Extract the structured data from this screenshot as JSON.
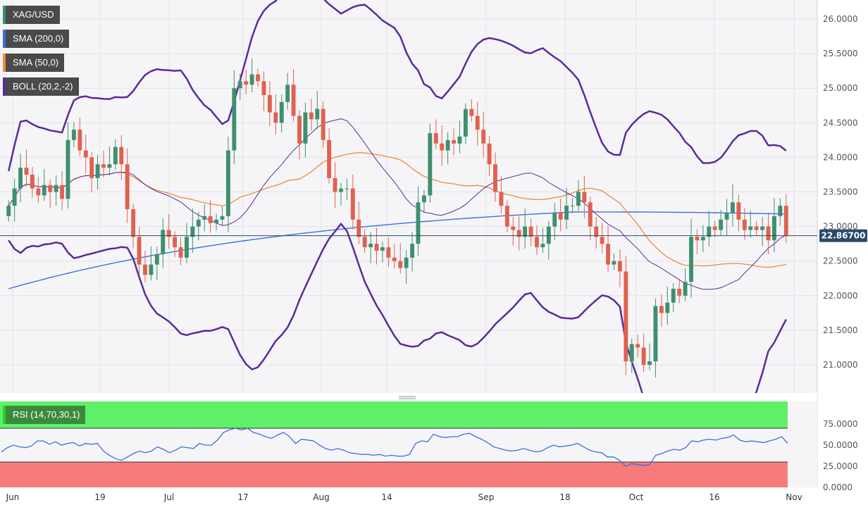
{
  "legends": {
    "symbol": "XAG/USD",
    "sma200": "SMA (200,0)",
    "sma50": "SMA (50,0)",
    "boll": "BOLL (20,2,-2)",
    "rsi": "RSI (14,70,30,1)"
  },
  "current_price_label": "22.86700",
  "colors": {
    "up": "#3f8f6f",
    "down": "#e0614f",
    "sma200": "#3a6fe0",
    "sma50": "#ef8a3a",
    "boll": "#5b2a9a",
    "rsi_line": "#3a6fe0",
    "rsi_overbought_zone": "#5ff06a",
    "rsi_oversold_zone": "#f77b7b",
    "price_line": "#2a4a6a"
  },
  "chart_data": [
    {
      "type": "candlestick",
      "title": "XAG/USD",
      "x_tick_labels": [
        "Jun",
        "19",
        "Jul",
        "17",
        "Aug",
        "14",
        "Sep",
        "18",
        "Oct",
        "16",
        "Nov"
      ],
      "y_tick_labels": [
        "26.0000",
        "25.5000",
        "25.0000",
        "24.5000",
        "24.0000",
        "23.5000",
        "23.0000",
        "22.5000",
        "22.0000",
        "21.5000",
        "21.0000"
      ],
      "ylim": [
        20.6,
        26.2
      ],
      "grid": true,
      "current_price": 22.867,
      "ohlc_close": [
        23.3,
        23.55,
        23.85,
        23.75,
        23.55,
        23.45,
        23.6,
        23.5,
        23.6,
        23.4,
        24.25,
        24.4,
        24.1,
        24.0,
        23.7,
        23.9,
        23.85,
        23.9,
        24.15,
        23.9,
        23.25,
        22.85,
        22.45,
        22.3,
        22.45,
        22.6,
        22.95,
        22.85,
        22.7,
        22.55,
        22.85,
        23.0,
        23.1,
        23.15,
        23.05,
        23.1,
        23.15,
        24.1,
        25.0,
        25.1,
        25.05,
        25.2,
        25.1,
        24.9,
        24.65,
        24.5,
        24.8,
        25.05,
        24.6,
        24.2,
        24.65,
        24.55,
        24.7,
        24.25,
        23.7,
        23.5,
        23.55,
        23.55,
        23.1,
        22.85,
        22.7,
        22.75,
        22.65,
        22.7,
        22.55,
        22.5,
        22.4,
        22.55,
        22.75,
        23.35,
        23.45,
        24.35,
        24.2,
        24.1,
        24.25,
        24.2,
        24.3,
        24.7,
        24.6,
        24.4,
        24.2,
        23.9,
        23.5,
        23.3,
        23.0,
        22.95,
        22.85,
        23.0,
        22.85,
        22.7,
        22.75,
        23.0,
        23.2,
        23.1,
        23.3,
        23.3,
        23.5,
        23.35,
        23.0,
        22.85,
        22.75,
        22.45,
        22.5,
        22.35,
        21.05,
        21.3,
        21.25,
        21.0,
        21.05,
        21.85,
        21.75,
        21.9,
        22.1,
        22.0,
        22.2,
        22.85,
        22.8,
        22.85,
        23.0,
        22.95,
        23.1,
        23.2,
        23.35,
        23.1,
        22.95,
        23.0,
        22.95,
        23.0,
        22.8,
        23.15,
        23.3,
        22.87
      ],
      "series": [
        {
          "name": "SMA (200,0)"
        },
        {
          "name": "SMA (50,0)"
        },
        {
          "name": "BOLL (20,2,-2)"
        }
      ]
    },
    {
      "type": "line",
      "title": "RSI (14,70,30,1)",
      "y_tick_labels": [
        "75.0000",
        "50.0000",
        "25.0000",
        "0.0000"
      ],
      "ylim": [
        0,
        100
      ],
      "overbought": 70,
      "oversold": 30,
      "values": [
        42,
        47,
        50,
        48,
        47,
        49,
        55,
        55,
        51,
        54,
        50,
        52,
        53,
        49,
        52,
        51,
        52,
        43,
        38,
        34,
        32,
        36,
        40,
        43,
        41,
        43,
        48,
        45,
        41,
        44,
        48,
        47,
        46,
        52,
        50,
        50,
        56,
        65,
        68,
        70,
        68,
        70,
        65,
        63,
        60,
        58,
        62,
        65,
        60,
        52,
        57,
        56,
        55,
        50,
        46,
        44,
        46,
        44,
        41,
        40,
        39,
        39,
        38,
        39,
        37,
        38,
        37,
        37,
        39,
        52,
        55,
        54,
        63,
        60,
        59,
        60,
        60,
        63,
        64,
        60,
        57,
        53,
        48,
        46,
        44,
        43,
        44,
        46,
        44,
        42,
        43,
        47,
        50,
        48,
        49,
        50,
        52,
        48,
        44,
        42,
        41,
        36,
        36,
        32,
        25,
        28,
        27,
        26,
        27,
        38,
        40,
        43,
        45,
        44,
        47,
        55,
        54,
        56,
        57,
        56,
        58,
        59,
        62,
        56,
        54,
        55,
        54,
        53,
        55,
        57,
        60,
        52
      ]
    }
  ],
  "x_tick_labels_shared": [
    "Jun",
    "19",
    "Jul",
    "17",
    "Aug",
    "14",
    "Sep",
    "18",
    "Oct",
    "16",
    "Nov"
  ]
}
